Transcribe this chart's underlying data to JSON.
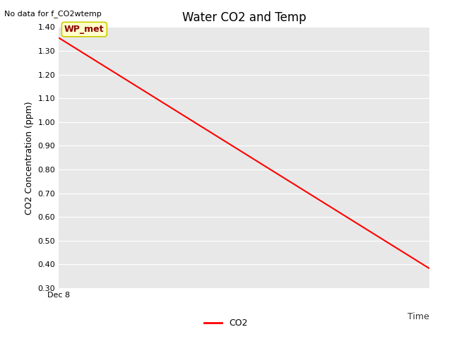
{
  "title": "Water CO2 and Temp",
  "no_data_text": "No data for f_CO2wtemp",
  "ylabel": "CO2 Concentration (ppm)",
  "xlabel_text": "Time",
  "xlim": [
    0,
    1
  ],
  "ylim": [
    0.3,
    1.4
  ],
  "yticks": [
    0.3,
    0.4,
    0.5,
    0.6,
    0.7,
    0.8,
    0.9,
    1.0,
    1.1,
    1.2,
    1.3,
    1.4
  ],
  "x_start_label": "Dec 8",
  "line_x": [
    0,
    1
  ],
  "line_y": [
    1.355,
    0.383
  ],
  "line_color": "#ff0000",
  "line_width": 1.5,
  "legend_label": "CO2",
  "fig_bg_color": "#ffffff",
  "plot_bg_color": "#e8e8e8",
  "annotation_text": "WP_met",
  "annotation_bg": "#ffffcc",
  "annotation_fg": "#8b0000",
  "annotation_edge": "#cccc00",
  "title_fontsize": 12,
  "label_fontsize": 9,
  "tick_fontsize": 8,
  "no_data_fontsize": 8
}
